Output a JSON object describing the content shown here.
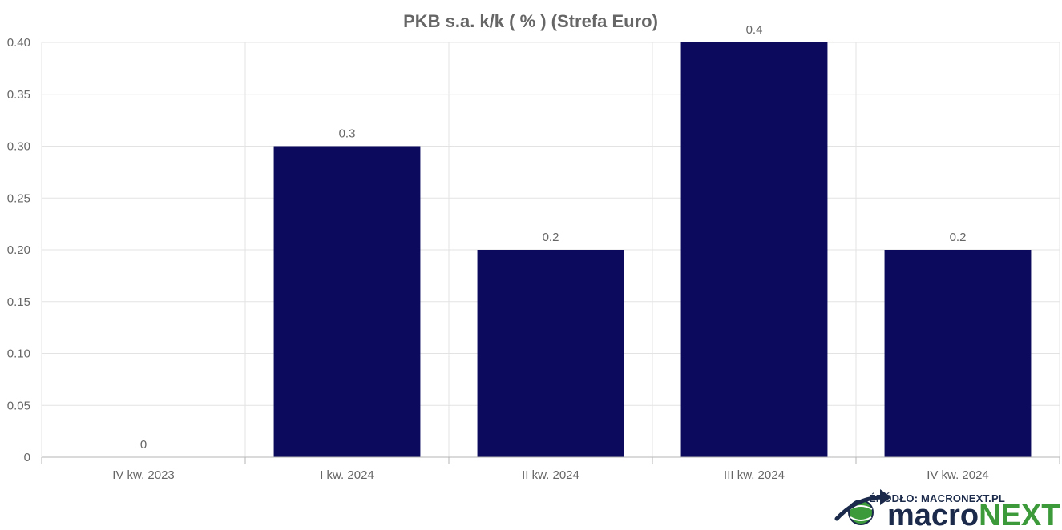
{
  "chart_data": {
    "type": "bar",
    "title": "PKB s.a. k/k ( % ) (Strefa Euro)",
    "xlabel": "",
    "ylabel": "",
    "categories": [
      "IV kw. 2023",
      "I kw. 2024",
      "II kw. 2024",
      "III kw. 2024",
      "IV kw. 2024"
    ],
    "values": [
      0,
      0.3,
      0.2,
      0.4,
      0.2
    ],
    "data_labels": [
      "0",
      "0.3",
      "0.2",
      "0.4",
      "0.2"
    ],
    "ylim": [
      0,
      0.4
    ],
    "yticks": [
      0,
      0.05,
      0.1,
      0.15,
      0.2,
      0.25,
      0.3,
      0.35,
      0.4
    ],
    "ytick_labels": [
      "0",
      "0.05",
      "0.10",
      "0.15",
      "0.20",
      "0.25",
      "0.30",
      "0.35",
      "0.40"
    ],
    "grid": true,
    "bar_color": "#0b0a5c"
  },
  "branding": {
    "source_text": "ŹRÓDŁO: MACRONEXT.PL",
    "logo_part1": "macro",
    "logo_part2": "NEXT",
    "logo_dark_color": "#1b2a4a",
    "logo_green_color": "#3c9a3a",
    "logo_icon": "globe-arrow-icon"
  }
}
